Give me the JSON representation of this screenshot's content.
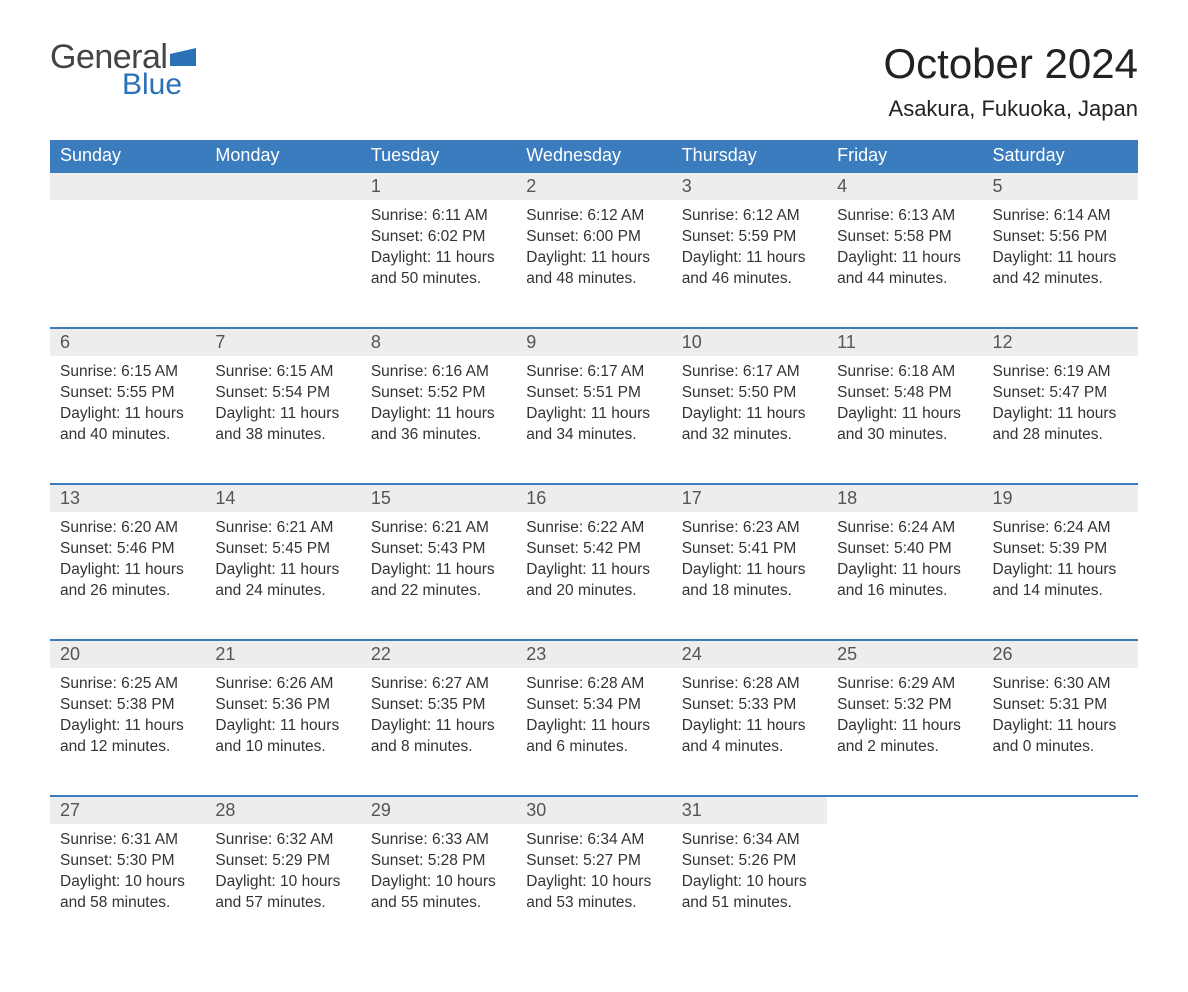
{
  "logo": {
    "text_top": "General",
    "text_bottom": "Blue",
    "flag_color": "#2a71b8",
    "text_top_color": "#444444"
  },
  "title": "October 2024",
  "location": "Asakura, Fukuoka, Japan",
  "colors": {
    "header_bg": "#3b7cbf",
    "header_text": "#ffffff",
    "daynum_bg": "#ededed",
    "row_border": "#3b7cbf",
    "body_text": "#333333",
    "background": "#ffffff"
  },
  "typography": {
    "title_fontsize": 42,
    "location_fontsize": 22,
    "header_fontsize": 18,
    "daynum_fontsize": 18,
    "body_fontsize": 15.5,
    "font_family": "Arial"
  },
  "calendar": {
    "type": "table",
    "columns": [
      "Sunday",
      "Monday",
      "Tuesday",
      "Wednesday",
      "Thursday",
      "Friday",
      "Saturday"
    ],
    "weeks": [
      [
        null,
        null,
        {
          "d": "1",
          "sunrise": "6:11 AM",
          "sunset": "6:02 PM",
          "daylight": "11 hours and 50 minutes."
        },
        {
          "d": "2",
          "sunrise": "6:12 AM",
          "sunset": "6:00 PM",
          "daylight": "11 hours and 48 minutes."
        },
        {
          "d": "3",
          "sunrise": "6:12 AM",
          "sunset": "5:59 PM",
          "daylight": "11 hours and 46 minutes."
        },
        {
          "d": "4",
          "sunrise": "6:13 AM",
          "sunset": "5:58 PM",
          "daylight": "11 hours and 44 minutes."
        },
        {
          "d": "5",
          "sunrise": "6:14 AM",
          "sunset": "5:56 PM",
          "daylight": "11 hours and 42 minutes."
        }
      ],
      [
        {
          "d": "6",
          "sunrise": "6:15 AM",
          "sunset": "5:55 PM",
          "daylight": "11 hours and 40 minutes."
        },
        {
          "d": "7",
          "sunrise": "6:15 AM",
          "sunset": "5:54 PM",
          "daylight": "11 hours and 38 minutes."
        },
        {
          "d": "8",
          "sunrise": "6:16 AM",
          "sunset": "5:52 PM",
          "daylight": "11 hours and 36 minutes."
        },
        {
          "d": "9",
          "sunrise": "6:17 AM",
          "sunset": "5:51 PM",
          "daylight": "11 hours and 34 minutes."
        },
        {
          "d": "10",
          "sunrise": "6:17 AM",
          "sunset": "5:50 PM",
          "daylight": "11 hours and 32 minutes."
        },
        {
          "d": "11",
          "sunrise": "6:18 AM",
          "sunset": "5:48 PM",
          "daylight": "11 hours and 30 minutes."
        },
        {
          "d": "12",
          "sunrise": "6:19 AM",
          "sunset": "5:47 PM",
          "daylight": "11 hours and 28 minutes."
        }
      ],
      [
        {
          "d": "13",
          "sunrise": "6:20 AM",
          "sunset": "5:46 PM",
          "daylight": "11 hours and 26 minutes."
        },
        {
          "d": "14",
          "sunrise": "6:21 AM",
          "sunset": "5:45 PM",
          "daylight": "11 hours and 24 minutes."
        },
        {
          "d": "15",
          "sunrise": "6:21 AM",
          "sunset": "5:43 PM",
          "daylight": "11 hours and 22 minutes."
        },
        {
          "d": "16",
          "sunrise": "6:22 AM",
          "sunset": "5:42 PM",
          "daylight": "11 hours and 20 minutes."
        },
        {
          "d": "17",
          "sunrise": "6:23 AM",
          "sunset": "5:41 PM",
          "daylight": "11 hours and 18 minutes."
        },
        {
          "d": "18",
          "sunrise": "6:24 AM",
          "sunset": "5:40 PM",
          "daylight": "11 hours and 16 minutes."
        },
        {
          "d": "19",
          "sunrise": "6:24 AM",
          "sunset": "5:39 PM",
          "daylight": "11 hours and 14 minutes."
        }
      ],
      [
        {
          "d": "20",
          "sunrise": "6:25 AM",
          "sunset": "5:38 PM",
          "daylight": "11 hours and 12 minutes."
        },
        {
          "d": "21",
          "sunrise": "6:26 AM",
          "sunset": "5:36 PM",
          "daylight": "11 hours and 10 minutes."
        },
        {
          "d": "22",
          "sunrise": "6:27 AM",
          "sunset": "5:35 PM",
          "daylight": "11 hours and 8 minutes."
        },
        {
          "d": "23",
          "sunrise": "6:28 AM",
          "sunset": "5:34 PM",
          "daylight": "11 hours and 6 minutes."
        },
        {
          "d": "24",
          "sunrise": "6:28 AM",
          "sunset": "5:33 PM",
          "daylight": "11 hours and 4 minutes."
        },
        {
          "d": "25",
          "sunrise": "6:29 AM",
          "sunset": "5:32 PM",
          "daylight": "11 hours and 2 minutes."
        },
        {
          "d": "26",
          "sunrise": "6:30 AM",
          "sunset": "5:31 PM",
          "daylight": "11 hours and 0 minutes."
        }
      ],
      [
        {
          "d": "27",
          "sunrise": "6:31 AM",
          "sunset": "5:30 PM",
          "daylight": "10 hours and 58 minutes."
        },
        {
          "d": "28",
          "sunrise": "6:32 AM",
          "sunset": "5:29 PM",
          "daylight": "10 hours and 57 minutes."
        },
        {
          "d": "29",
          "sunrise": "6:33 AM",
          "sunset": "5:28 PM",
          "daylight": "10 hours and 55 minutes."
        },
        {
          "d": "30",
          "sunrise": "6:34 AM",
          "sunset": "5:27 PM",
          "daylight": "10 hours and 53 minutes."
        },
        {
          "d": "31",
          "sunrise": "6:34 AM",
          "sunset": "5:26 PM",
          "daylight": "10 hours and 51 minutes."
        },
        null,
        null
      ]
    ],
    "labels": {
      "sunrise": "Sunrise: ",
      "sunset": "Sunset: ",
      "daylight": "Daylight: "
    }
  }
}
